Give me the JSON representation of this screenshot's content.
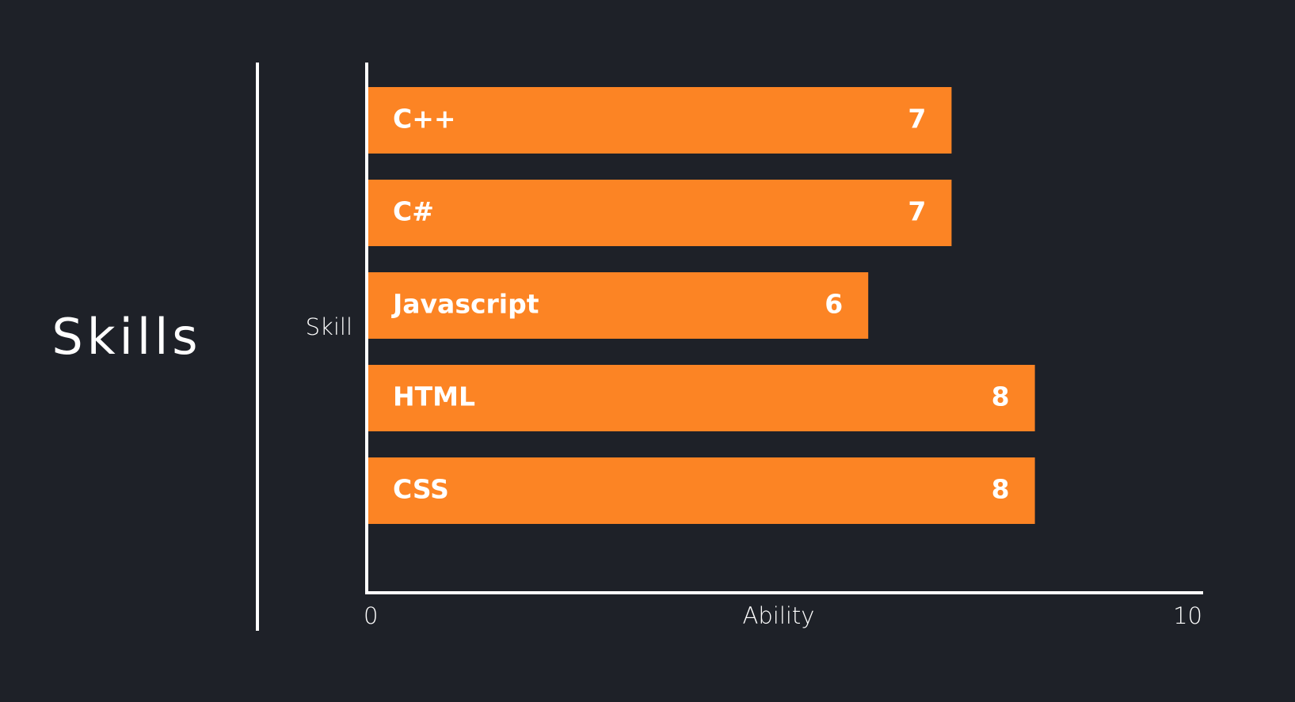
{
  "section": {
    "title": "Skills"
  },
  "colors": {
    "background": "#1e2128",
    "bar": "#fc8424",
    "text": "#ffffff"
  },
  "chart_data": {
    "type": "bar",
    "orientation": "horizontal",
    "categories": [
      "C++",
      "C#",
      "Javascript",
      "HTML",
      "CSS"
    ],
    "values": [
      7,
      7,
      6,
      8,
      8
    ],
    "xlabel": "Ability",
    "ylabel": "Skill",
    "xlim": [
      0,
      10
    ],
    "x_ticks": [
      "0",
      "10"
    ],
    "grid": false
  }
}
